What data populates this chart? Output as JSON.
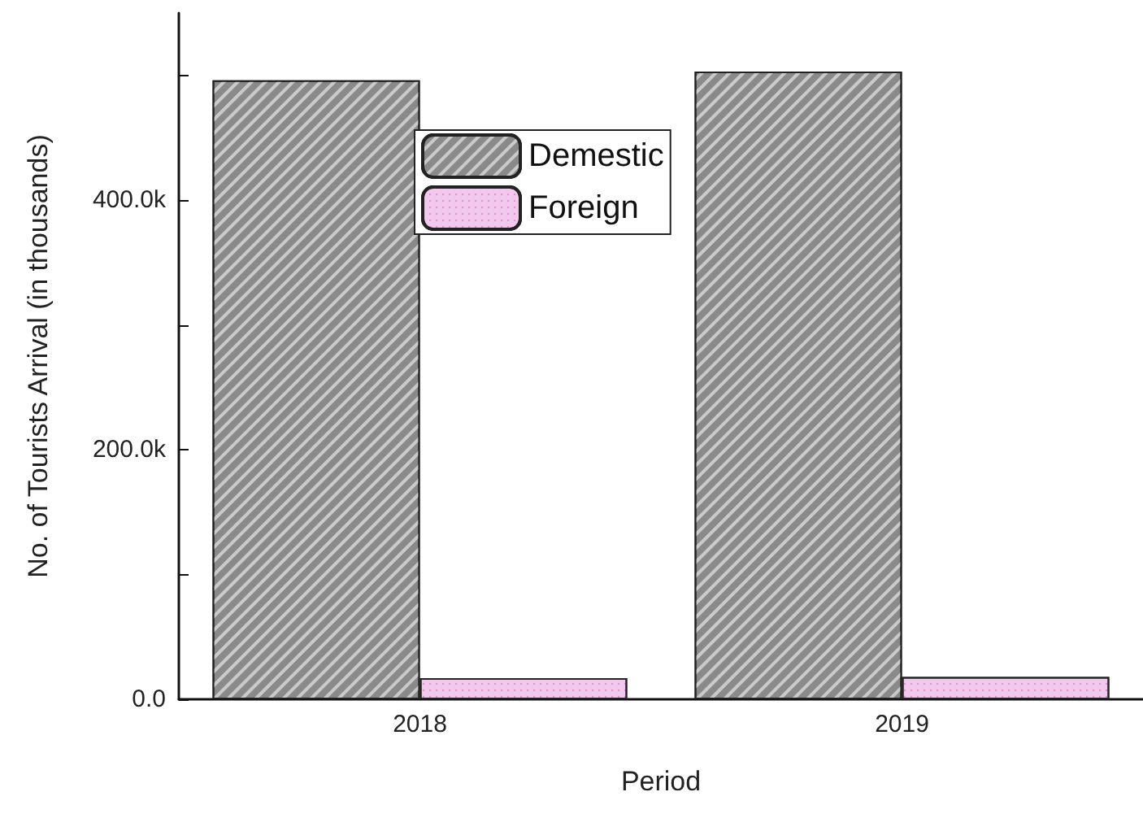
{
  "chart_data": {
    "type": "bar",
    "xlabel": "Period",
    "ylabel": "No. of Tourists Arrival (in thousands)",
    "categories": [
      "2018",
      "2019"
    ],
    "series": [
      {
        "name": "Demestic",
        "color": "#8a8a8a",
        "values": [
          496000,
          503000
        ]
      },
      {
        "name": "Foreign",
        "color": "#f2c9ec",
        "values": [
          17000,
          18000
        ]
      }
    ],
    "ylim": [
      0,
      550000
    ],
    "yticks": [
      {
        "value": 0,
        "label": "0.0"
      },
      {
        "value": 100000,
        "label": null
      },
      {
        "value": 200000,
        "label": "200.0k"
      },
      {
        "value": 300000,
        "label": null
      },
      {
        "value": 400000,
        "label": "400.0k"
      },
      {
        "value": 500000,
        "label": null
      }
    ],
    "grid": false,
    "legend": "top center"
  }
}
